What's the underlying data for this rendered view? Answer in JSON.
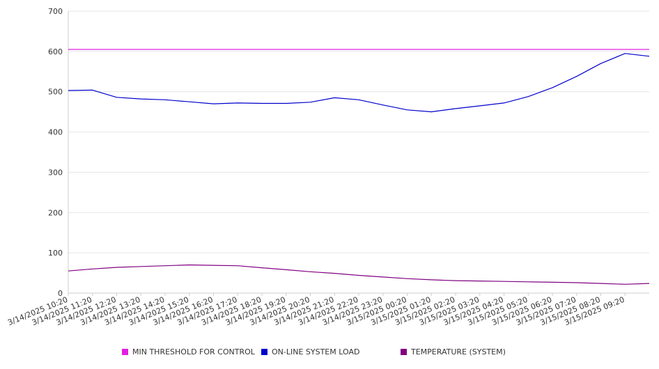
{
  "chart_data": {
    "type": "line",
    "title": "",
    "xlabel": "",
    "ylabel": "",
    "ylim": [
      0,
      700
    ],
    "yticks": [
      0,
      100,
      200,
      300,
      400,
      500,
      600,
      700
    ],
    "x_start": "3/14/2025 10:20",
    "x_end": "3/15/2025 10:20",
    "x_tick_labels": [
      "3/14/2025 10:20",
      "3/14/2025 11:20",
      "3/14/2025 12:20",
      "3/14/2025 13:20",
      "3/14/2025 14:20",
      "3/14/2025 15:20",
      "3/14/2025 16:20",
      "3/14/2025 17:20",
      "3/14/2025 18:20",
      "3/14/2025 19:20",
      "3/14/2025 20:20",
      "3/14/2025 21:20",
      "3/14/2025 22:20",
      "3/14/2025 23:20",
      "3/15/2025 00:20",
      "3/15/2025 01:20",
      "3/15/2025 02:20",
      "3/15/2025 03:20",
      "3/15/2025 04:20",
      "3/15/2025 05:20",
      "3/15/2025 06:20",
      "3/15/2025 07:20",
      "3/15/2025 08:20",
      "3/15/2025 09:20"
    ],
    "grid": true,
    "legend_position": "bottom",
    "series": [
      {
        "name": "MIN THRESHOLD FOR CONTROL",
        "color": "#e020e0",
        "values": [
          605,
          605,
          605,
          605,
          605,
          605,
          605,
          605,
          605,
          605,
          605,
          605,
          605,
          605,
          605,
          605,
          605,
          605,
          605,
          605,
          605,
          605,
          605,
          605,
          605
        ]
      },
      {
        "name": "ON-LINE SYSTEM LOAD",
        "color": "#0000cc",
        "values": [
          503,
          504,
          486,
          482,
          480,
          475,
          470,
          472,
          471,
          471,
          474,
          485,
          480,
          467,
          455,
          450,
          458,
          465,
          472,
          488,
          510,
          538,
          570,
          595,
          588
        ]
      },
      {
        "name": "TEMPERATURE (SYSTEM)",
        "color": "#800080",
        "values": [
          55,
          60,
          64,
          66,
          68,
          70,
          69,
          68,
          63,
          58,
          53,
          49,
          44,
          40,
          36,
          33,
          31,
          30,
          29,
          28,
          27,
          26,
          24,
          22,
          24
        ]
      }
    ]
  }
}
